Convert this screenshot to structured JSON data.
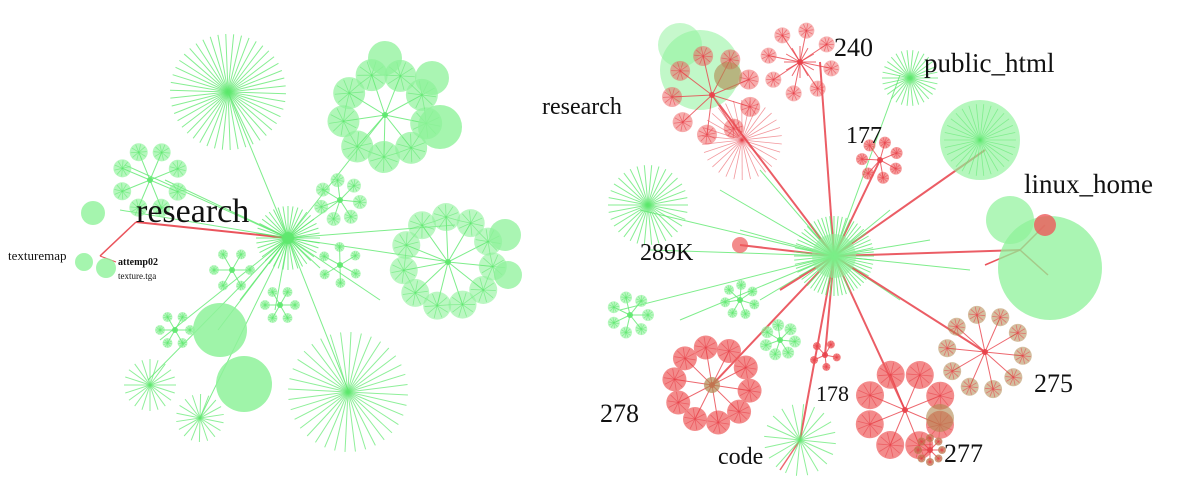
{
  "left_panel": {
    "labels": {
      "research": "research",
      "texturemap": "texturemap",
      "attemp02": "attemp02",
      "texture_tga": "texture.tga"
    }
  },
  "right_panel": {
    "labels": {
      "research": "research",
      "n240": "240",
      "public_html": "public_html",
      "n177": "177",
      "linux_home": "linux_home",
      "n289k": "289K",
      "n278": "278",
      "n178": "178",
      "n275": "275",
      "code": "code",
      "n277": "277"
    }
  },
  "colors": {
    "green": "#5ee86e",
    "green_fill": "#8ef29a",
    "red": "#e8414a",
    "red_fill": "#ee5a5a",
    "brown": "#b08850"
  }
}
